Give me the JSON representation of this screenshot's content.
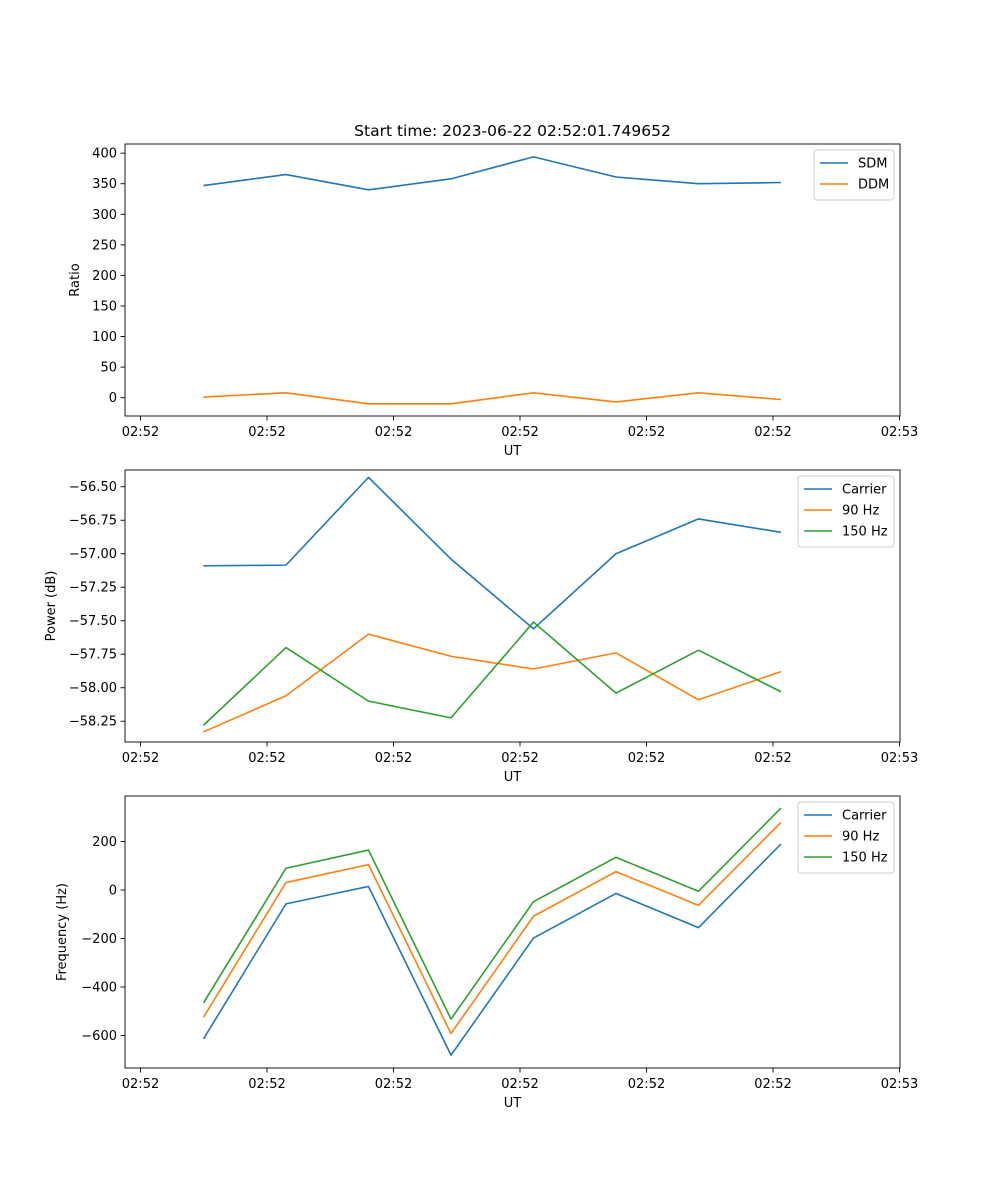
{
  "figure": {
    "title": "Start time: 2023-06-22 02:52:01.749652"
  },
  "chart_data": [
    {
      "type": "line",
      "xlabel": "UT",
      "ylabel": "Ratio",
      "x_tick_labels": [
        "02:52",
        "02:52",
        "02:52",
        "02:52",
        "02:52",
        "02:52",
        "02:53"
      ],
      "ylim": [
        -30,
        415
      ],
      "y_ticks": [
        0,
        50,
        100,
        150,
        200,
        250,
        300,
        350,
        400
      ],
      "grid": false,
      "legend_position": "top-right",
      "series": [
        {
          "name": "SDM",
          "color": "#1f77b4",
          "values": [
            347,
            365,
            340,
            358,
            394,
            361,
            350,
            352
          ]
        },
        {
          "name": "DDM",
          "color": "#ff7f0e",
          "values": [
            1,
            8,
            -10,
            -10,
            8,
            -7,
            8,
            -3
          ]
        }
      ]
    },
    {
      "type": "line",
      "xlabel": "UT",
      "ylabel": "Power (dB)",
      "x_tick_labels": [
        "02:52",
        "02:52",
        "02:52",
        "02:52",
        "02:52",
        "02:52",
        "02:53"
      ],
      "ylim": [
        -58.405,
        -56.375
      ],
      "y_ticks": [
        -56.5,
        -56.75,
        -57.0,
        -57.25,
        -57.5,
        -57.75,
        -58.0,
        -58.25
      ],
      "y_tick_labels": [
        "−56.50",
        "−56.75",
        "−57.00",
        "−57.25",
        "−57.50",
        "−57.75",
        "−58.00",
        "−58.25"
      ],
      "grid": false,
      "legend_position": "top-right",
      "series": [
        {
          "name": "Carrier",
          "color": "#1f77b4",
          "values": [
            -57.09,
            -57.085,
            -56.43,
            -57.04,
            -57.56,
            -57.0,
            -56.74,
            -56.84
          ]
        },
        {
          "name": "90 Hz",
          "color": "#ff7f0e",
          "values": [
            -58.33,
            -58.06,
            -57.6,
            -57.765,
            -57.86,
            -57.74,
            -58.09,
            -57.88
          ]
        },
        {
          "name": "150 Hz",
          "color": "#2ca02c",
          "values": [
            -58.28,
            -57.7,
            -58.1,
            -58.225,
            -57.51,
            -58.04,
            -57.72,
            -58.03
          ]
        }
      ]
    },
    {
      "type": "line",
      "xlabel": "UT",
      "ylabel": "Frequency (Hz)",
      "x_tick_labels": [
        "02:52",
        "02:52",
        "02:52",
        "02:52",
        "02:52",
        "02:52",
        "02:53"
      ],
      "ylim": [
        -734,
        388
      ],
      "y_ticks": [
        200,
        0,
        -200,
        -400,
        -600
      ],
      "y_tick_labels": [
        "200",
        "0",
        "−200",
        "−400",
        "−600"
      ],
      "grid": false,
      "legend_position": "top-right",
      "series": [
        {
          "name": "Carrier",
          "color": "#1f77b4",
          "values": [
            -614,
            -57,
            15,
            -681,
            -198,
            -14,
            -155,
            190
          ]
        },
        {
          "name": "90 Hz",
          "color": "#ff7f0e",
          "values": [
            -525,
            31,
            105,
            -592,
            -108,
            76,
            -63,
            279
          ]
        },
        {
          "name": "150 Hz",
          "color": "#2ca02c",
          "values": [
            -465,
            90,
            165,
            -532,
            -48,
            135,
            -5,
            338
          ]
        }
      ]
    }
  ]
}
